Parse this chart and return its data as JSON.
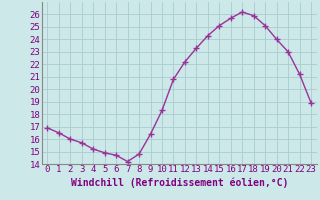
{
  "x": [
    0,
    1,
    2,
    3,
    4,
    5,
    6,
    7,
    8,
    9,
    10,
    11,
    12,
    13,
    14,
    15,
    16,
    17,
    18,
    19,
    20,
    21,
    22,
    23
  ],
  "y": [
    16.9,
    16.5,
    16.0,
    15.7,
    15.2,
    14.9,
    14.7,
    14.2,
    14.8,
    16.4,
    18.3,
    20.8,
    22.2,
    23.3,
    24.3,
    25.1,
    25.7,
    26.2,
    25.9,
    25.1,
    24.0,
    23.0,
    21.2,
    18.9
  ],
  "line_color": "#993399",
  "marker": "+",
  "marker_size": 4,
  "xlabel": "Windchill (Refroidissement éolien,°C)",
  "xlim": [
    -0.5,
    23.5
  ],
  "ylim": [
    14,
    27
  ],
  "yticks": [
    14,
    15,
    16,
    17,
    18,
    19,
    20,
    21,
    22,
    23,
    24,
    25,
    26
  ],
  "xtick_labels": [
    "0",
    "1",
    "2",
    "3",
    "4",
    "5",
    "6",
    "7",
    "8",
    "9",
    "10",
    "11",
    "12",
    "13",
    "14",
    "15",
    "16",
    "17",
    "18",
    "19",
    "20",
    "21",
    "22",
    "23"
  ],
  "background_color": "#cce8e8",
  "grid_color": "#aacccc",
  "xlabel_fontsize": 7,
  "tick_fontsize": 6.5,
  "label_color": "#800080"
}
